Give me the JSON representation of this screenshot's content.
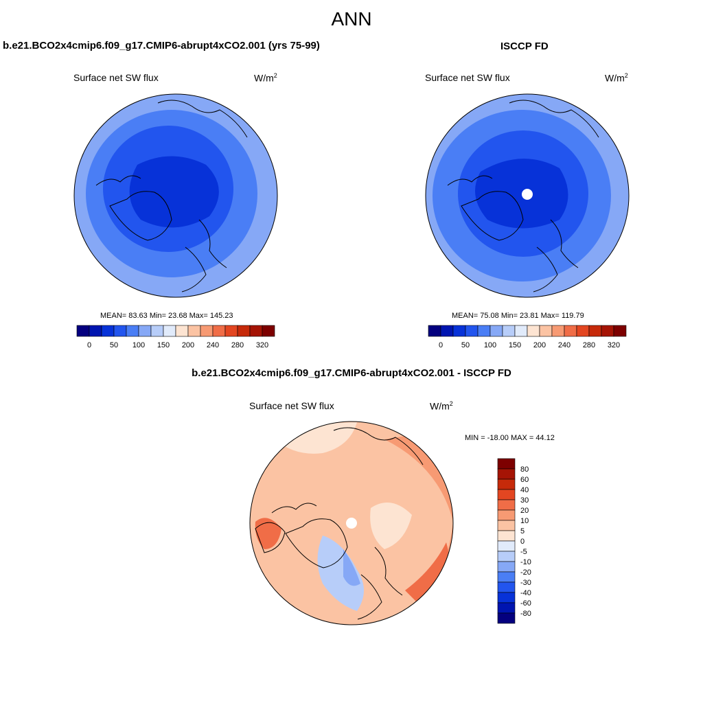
{
  "figure": {
    "title": "ANN"
  },
  "panels": {
    "left": {
      "case_title": "b.e21.BCO2x4cmip6.f09_g17.CMIP6-abrupt4xCO2.001 (yrs 75-99)",
      "variable": "Surface net SW flux",
      "units_base": "W/m",
      "units_exp": "2",
      "stats": "MEAN=  83.63  Min=  23.68  Max= 145.23"
    },
    "right": {
      "case_title": "ISCCP FD",
      "variable": "Surface net SW flux",
      "units_base": "W/m",
      "units_exp": "2",
      "stats": "MEAN=  75.08  Min=  23.81  Max= 119.79"
    },
    "diff": {
      "case_title": "b.e21.BCO2x4cmip6.f09_g17.CMIP6-abrupt4xCO2.001 - ISCCP FD",
      "variable": "Surface net SW flux",
      "units_base": "W/m",
      "units_exp": "2",
      "stats": "MIN = -18.00 MAX =  44.12"
    }
  },
  "colorbars": {
    "abs": {
      "colors": [
        "#04007f",
        "#0015b0",
        "#0732d8",
        "#2255ee",
        "#4a7ef5",
        "#86a8f6",
        "#b7cdf9",
        "#e1ebfb",
        "#fde4d2",
        "#fbc3a3",
        "#f79a73",
        "#f06d47",
        "#e34621",
        "#c62a0a",
        "#a51405",
        "#7d0000"
      ],
      "tick_labels": [
        "0",
        "50",
        "100",
        "150",
        "200",
        "240",
        "280",
        "320"
      ]
    },
    "diff": {
      "colors": [
        "#04007f",
        "#0015b0",
        "#0732d8",
        "#2255ee",
        "#4a7ef5",
        "#86a8f6",
        "#b7cdf9",
        "#e1ebfb",
        "#fde4d2",
        "#fbc3a3",
        "#f79a73",
        "#f06d47",
        "#e34621",
        "#c62a0a",
        "#a51405",
        "#7d0000"
      ],
      "tick_labels": [
        "80",
        "60",
        "40",
        "30",
        "20",
        "10",
        "5",
        "0",
        "-5",
        "-10",
        "-20",
        "-30",
        "-40",
        "-60",
        "-80"
      ]
    }
  },
  "map_colors": {
    "abs_outer": "#86a8f6",
    "abs_mid": "#4a7ef5",
    "abs_inner": "#2255ee",
    "abs_core": "#0732d8",
    "diff_base": "#fbc3a3",
    "diff_warm": "#f79a73",
    "diff_hot": "#f06d47",
    "diff_cool": "#b7cdf9",
    "diff_cold": "#86a8f6",
    "diff_pale": "#fde4d2",
    "missing": "#ffffff"
  }
}
